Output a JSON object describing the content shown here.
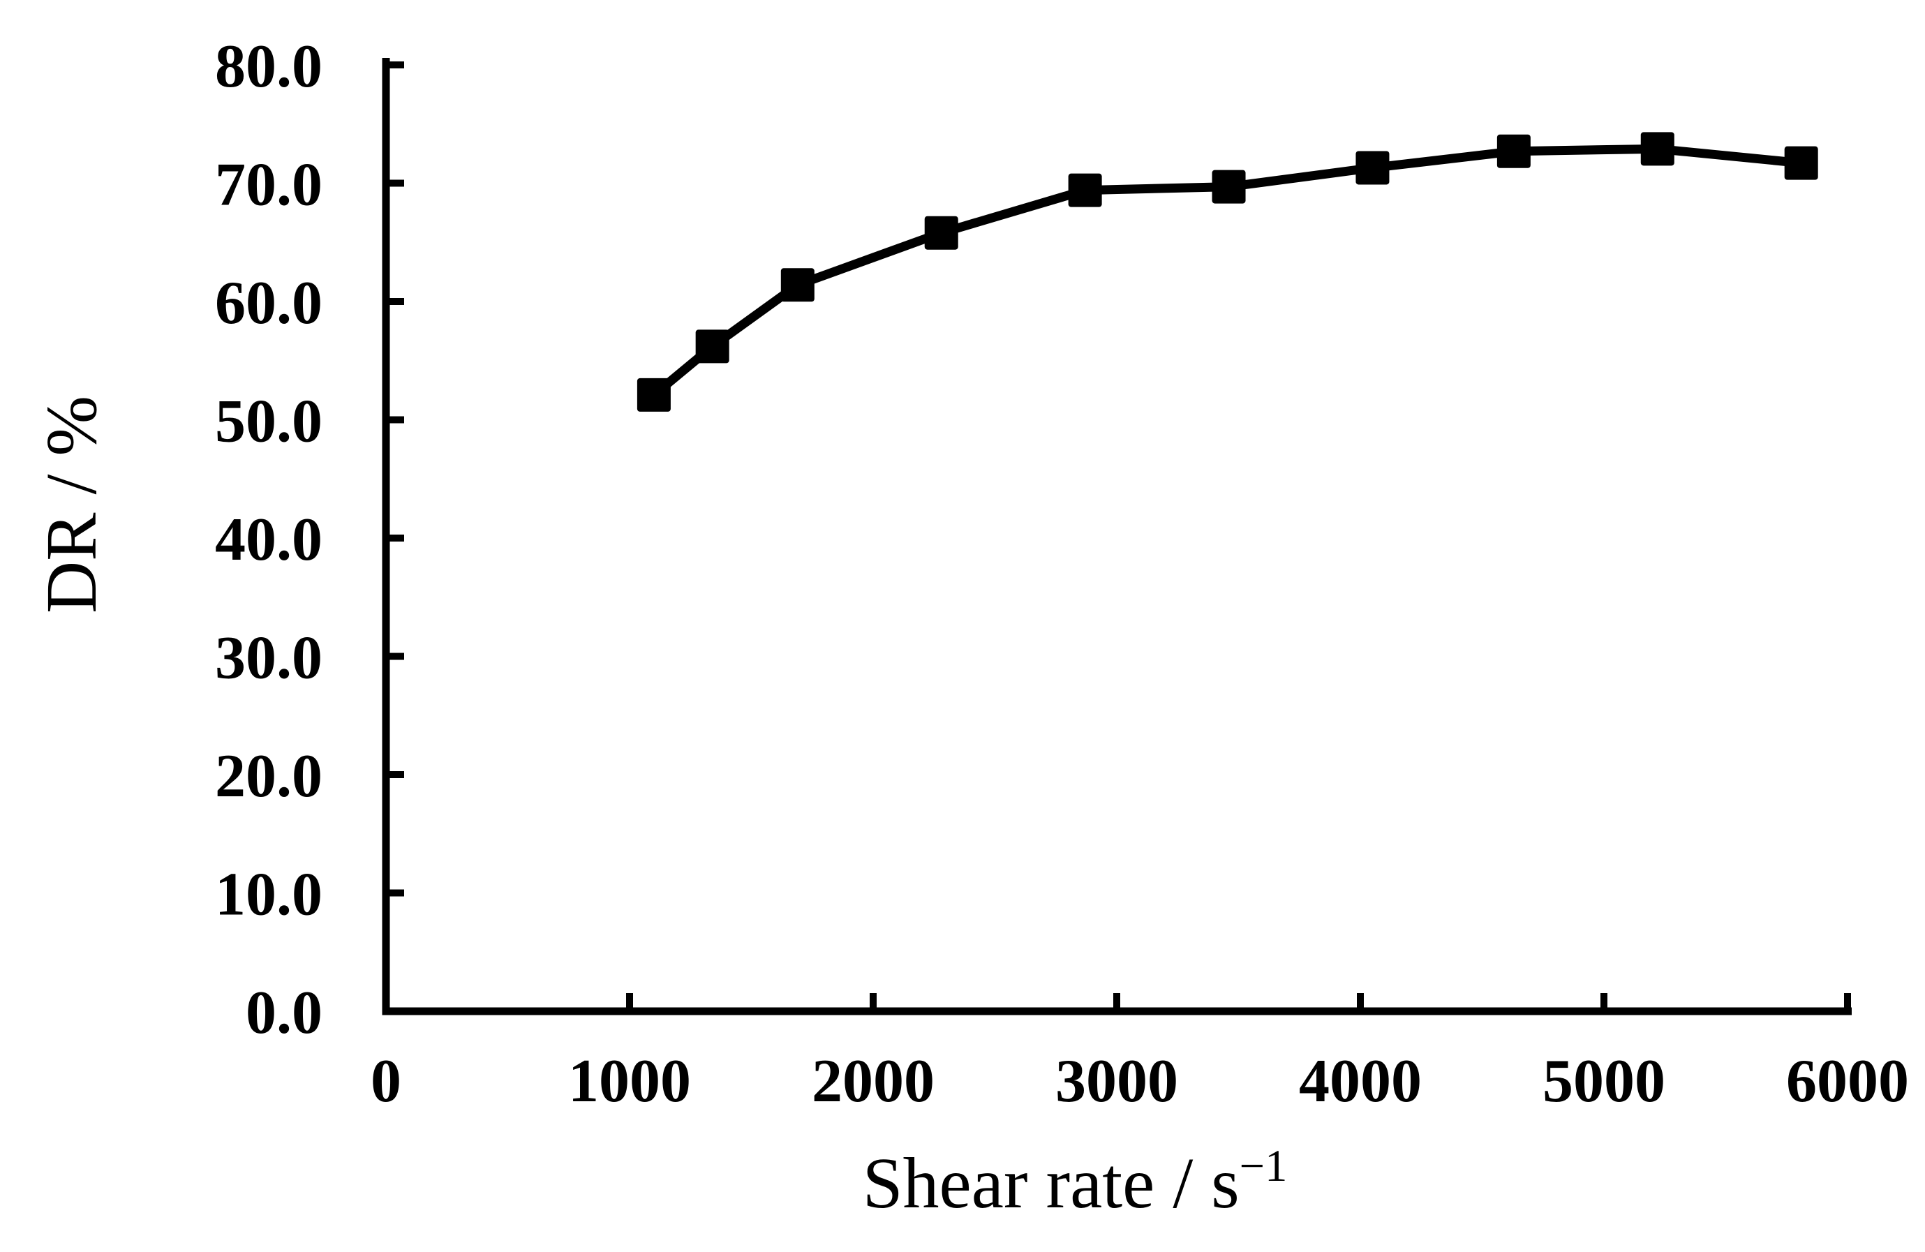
{
  "page": {
    "background": "#ffffff",
    "foreground": "#000000"
  },
  "chart_data": {
    "type": "line",
    "title": "",
    "xlabel": "Shear rate / s−1",
    "xlabel_base": "Shear rate / s",
    "xlabel_superscript": "−1",
    "ylabel": "DR / %",
    "x": [
      1100,
      1340,
      1690,
      2280,
      2870,
      3460,
      4050,
      4630,
      5220,
      5810
    ],
    "y": [
      52.1,
      56.2,
      61.4,
      65.8,
      69.4,
      69.7,
      71.3,
      72.7,
      72.9,
      71.7
    ],
    "xlim": [
      0,
      6000
    ],
    "ylim": [
      0,
      80
    ],
    "x_ticks": [
      0,
      1000,
      2000,
      3000,
      4000,
      5000,
      6000
    ],
    "x_tick_labels": [
      "0",
      "1000",
      "2000",
      "3000",
      "4000",
      "5000",
      "6000"
    ],
    "y_ticks": [
      0,
      10,
      20,
      30,
      40,
      50,
      60,
      70,
      80
    ],
    "y_tick_labels": [
      "0.0",
      "10.0",
      "20.0",
      "30.0",
      "40.0",
      "50.0",
      "60.0",
      "70.0",
      "80.0"
    ],
    "grid": false,
    "legend": "none",
    "marker": "filled-square",
    "line_color": "#000000",
    "marker_color": "#000000",
    "axis_color": "#000000",
    "tick_direction": "in"
  }
}
